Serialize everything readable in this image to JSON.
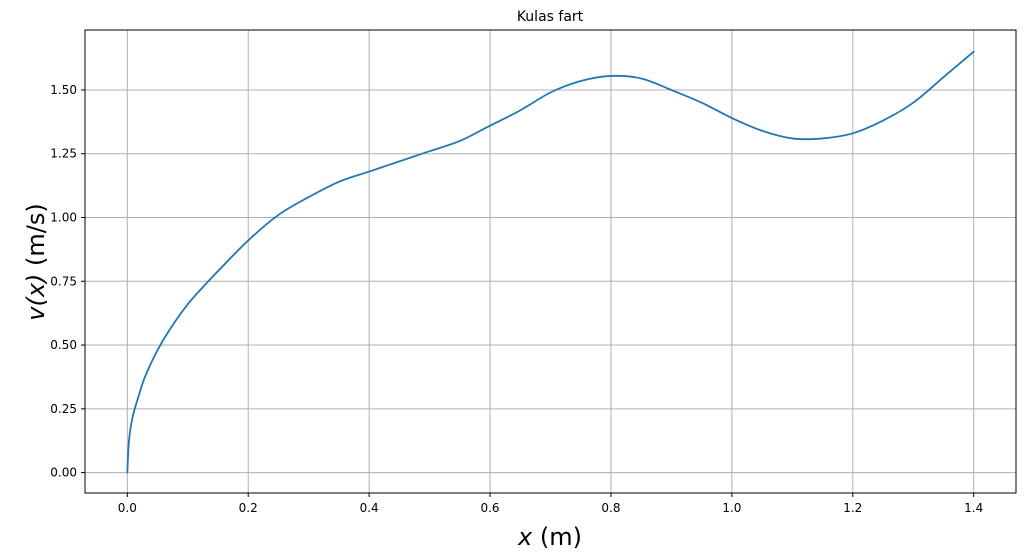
{
  "chart_data": {
    "type": "line",
    "title": "Kulas fart",
    "xlabel_var": "x",
    "xlabel_unit": " (m)",
    "ylabel_var": "v(x)",
    "ylabel_unit": " (m/s)",
    "xlim": [
      -0.07,
      1.47
    ],
    "ylim": [
      -0.08,
      1.735
    ],
    "xticks": [
      0.0,
      0.2,
      0.4,
      0.6,
      0.8,
      1.0,
      1.2,
      1.4
    ],
    "xtick_labels": [
      "0.0",
      "0.2",
      "0.4",
      "0.6",
      "0.8",
      "1.0",
      "1.2",
      "1.4"
    ],
    "yticks": [
      0.0,
      0.25,
      0.5,
      0.75,
      1.0,
      1.25,
      1.5
    ],
    "ytick_labels": [
      "0.00",
      "0.25",
      "0.50",
      "0.75",
      "1.00",
      "1.25",
      "1.50"
    ],
    "grid": true,
    "series": [
      {
        "color": "#1f77b4",
        "x": [
          0.0,
          0.002,
          0.005,
          0.01,
          0.02,
          0.03,
          0.05,
          0.07,
          0.1,
          0.13,
          0.15,
          0.2,
          0.25,
          0.3,
          0.35,
          0.4,
          0.45,
          0.5,
          0.55,
          0.6,
          0.65,
          0.7,
          0.75,
          0.8,
          0.85,
          0.9,
          0.95,
          1.0,
          1.05,
          1.1,
          1.15,
          1.2,
          1.25,
          1.3,
          1.35,
          1.4
        ],
        "y": [
          0.0,
          0.1,
          0.17,
          0.23,
          0.31,
          0.38,
          0.48,
          0.56,
          0.66,
          0.74,
          0.79,
          0.91,
          1.01,
          1.08,
          1.14,
          1.18,
          1.22,
          1.26,
          1.3,
          1.36,
          1.42,
          1.49,
          1.535,
          1.555,
          1.545,
          1.5,
          1.45,
          1.39,
          1.34,
          1.31,
          1.31,
          1.33,
          1.38,
          1.45,
          1.55,
          1.65
        ]
      }
    ]
  }
}
